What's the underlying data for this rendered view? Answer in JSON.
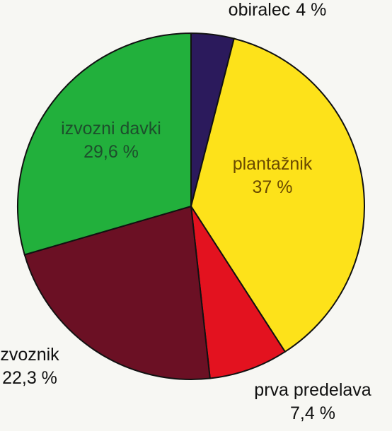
{
  "chart_data": {
    "type": "pie",
    "categories": [
      "obiralec",
      "plantažnik",
      "prva predelava",
      "zvoznik",
      "izvozni davki"
    ],
    "values": [
      4,
      37,
      7.4,
      22.3,
      29.6
    ],
    "value_labels": [
      "4 %",
      "37 %",
      "7,4 %",
      "22,3 %",
      "29,6 %"
    ],
    "colors": [
      "#2b1a5c",
      "#fde21a",
      "#e3121f",
      "#6b1024",
      "#22b03c"
    ]
  }
}
